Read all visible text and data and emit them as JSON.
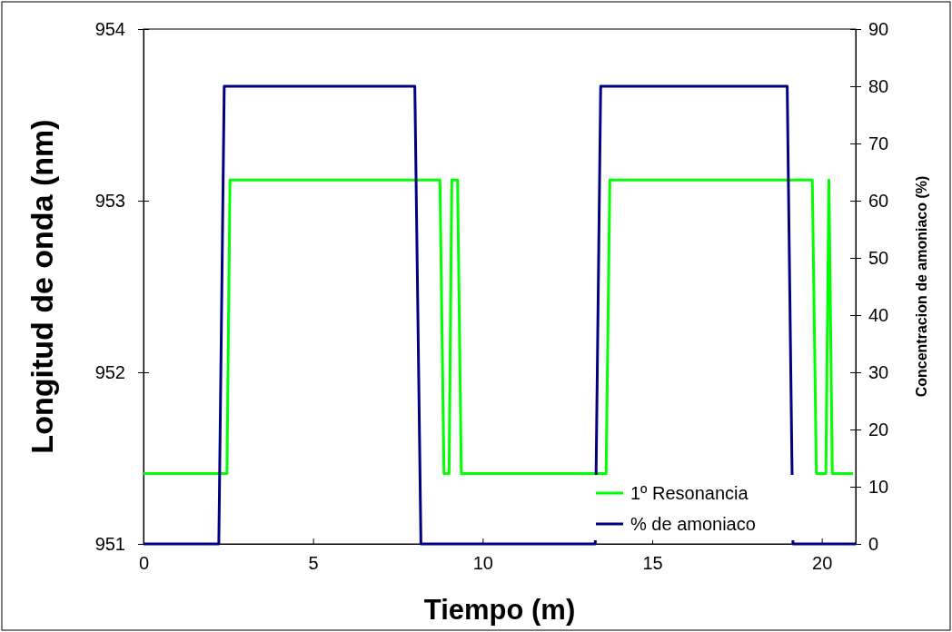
{
  "chart_data": {
    "type": "line",
    "xlabel": "Tiempo (m)",
    "ylabel": "Longitud de onda (nm)",
    "y2label": "Concentracion de amoniaco (%)",
    "xlim": [
      0,
      21
    ],
    "xticks": [
      0,
      5,
      10,
      15,
      20
    ],
    "ylim": [
      951,
      954
    ],
    "yticks": [
      951,
      952,
      953,
      954
    ],
    "y2lim": [
      0,
      90
    ],
    "y2ticks": [
      0,
      10,
      20,
      30,
      40,
      50,
      60,
      70,
      80,
      90
    ],
    "grid": false,
    "legend": "bottom right",
    "marker": "none",
    "line_style": "solid",
    "series": [
      {
        "name": "1º Resonancia",
        "color": "#00ff00",
        "x": [
          0,
          2.46,
          2.55,
          8.74,
          8.86,
          9.01,
          9.09,
          9.26,
          9.37,
          13.64,
          13.75,
          19.72,
          19.84,
          20.12,
          20.21,
          20.31,
          20.92
        ],
        "values": [
          951.41,
          951.41,
          953.12,
          953.12,
          951.41,
          951.41,
          953.12,
          953.12,
          951.41,
          951.41,
          953.12,
          953.12,
          951.41,
          951.41,
          953.12,
          951.41,
          951.41
        ]
      },
      {
        "name": "% de amoniaco",
        "color": "#000080",
        "axis": "y2",
        "x": [
          0,
          2.22,
          2.38,
          8.0,
          8.18,
          13.32,
          13.48,
          18.98,
          19.15,
          21
        ],
        "values": [
          0,
          0,
          80,
          80,
          0,
          0,
          80,
          80,
          0,
          0
        ]
      }
    ]
  }
}
